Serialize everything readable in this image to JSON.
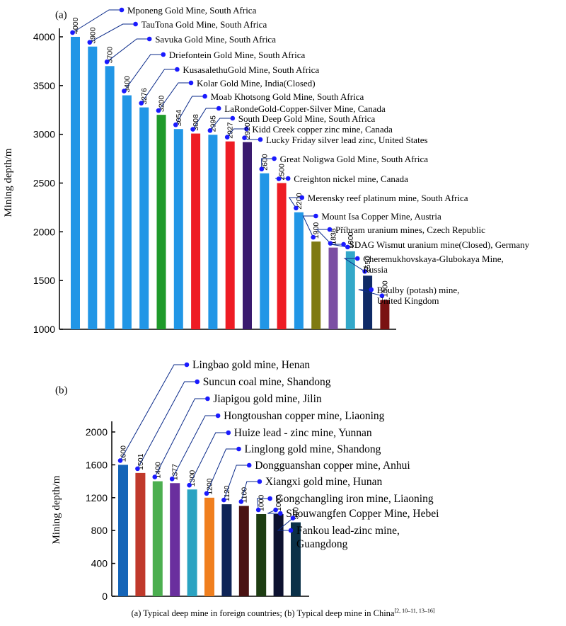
{
  "caption": {
    "text": "(a) Typical deep mine in foreign countries; (b) Typical deep mine in China",
    "refs": "[2, 10–11, 13–16]"
  },
  "chart_data": [
    {
      "type": "bar",
      "panel_label": "(a)",
      "ylabel": "Mining depth/m",
      "ylim": [
        1000,
        4200
      ],
      "yticks": [
        1000,
        1500,
        2000,
        2500,
        3000,
        3500,
        4000
      ],
      "categories": [
        "Mponeng Gold Mine, South Africa",
        "TauTona Gold Mine, South Africa",
        "Savuka Gold Mine, South Africa",
        "Driefontein Gold Mine, South Africa",
        "KusasalethuGold Mine, South Africa",
        "Kolar Gold Mine, India(Closed)",
        "Moab Khotsong Gold Mine, South Africa",
        "LaRondeGold-Copper-Silver Mine, Canada",
        "South Deep Gold Mine, South Africa",
        "Kidd Creek copper zinc mine, Canada",
        "Lucky Friday silver lead zinc, United States",
        "Great Noligwa Gold Mine, South Africa",
        "Creighton nickel mine, Canada",
        "Merensky reef platinum mine, South Africa",
        "Mount Isa Copper Mine, Austria",
        "Příbram uranium mines, Czech Republic",
        "SDAG Wismut uranium mine(Closed), Germany",
        "Cheremukhovskaya-Glubokaya Mine,\nRussia",
        "Boulby (potash) mine,\nUnited Kingdom"
      ],
      "values": [
        4000,
        3900,
        3700,
        3400,
        3276,
        3200,
        3054,
        3008,
        2995,
        2927,
        2920,
        2600,
        2500,
        2200,
        1900,
        1838,
        1800,
        1550,
        1300
      ],
      "colors": [
        "#2196e6",
        "#2196e6",
        "#2196e6",
        "#2196e6",
        "#2196e6",
        "#1f9a2a",
        "#2196e6",
        "#ee1c24",
        "#2196e6",
        "#ee1c24",
        "#3a1a6e",
        "#2196e6",
        "#ee1c24",
        "#2196e6",
        "#7f7a12",
        "#7b4fa3",
        "#33a8c9",
        "#0f2a66",
        "#7a1212"
      ]
    },
    {
      "type": "bar",
      "panel_label": "(b)",
      "ylabel": "Mining depth/m",
      "ylim": [
        0,
        2000
      ],
      "yticks": [
        0,
        400,
        800,
        1200,
        1600,
        2000
      ],
      "categories": [
        "Lingbao gold mine, Henan",
        "Suncun coal mine, Shandong",
        "Jiapigou gold mine, Jilin",
        "Hongtoushan copper mine, Liaoning",
        "Huize lead - zinc mine, Yunnan",
        "Linglong gold mine, Shandong",
        "Dongguanshan copper mine, Anhui",
        "Xiangxi gold mine, Hunan",
        "Gongchangling iron mine, Liaoning",
        "Shouwangfen Copper Mine, Hebei",
        "Fankou lead-zinc mine,\nGuangdong"
      ],
      "values": [
        1600,
        1501,
        1400,
        1377,
        1300,
        1200,
        1120,
        1100,
        1000,
        1000,
        900
      ],
      "colors": [
        "#1565b8",
        "#c0392b",
        "#4caf50",
        "#6a2f9e",
        "#2aa3c2",
        "#f07f1e",
        "#0e2456",
        "#4a1212",
        "#1d3d12",
        "#0d1230",
        "#0b3048"
      ]
    }
  ]
}
